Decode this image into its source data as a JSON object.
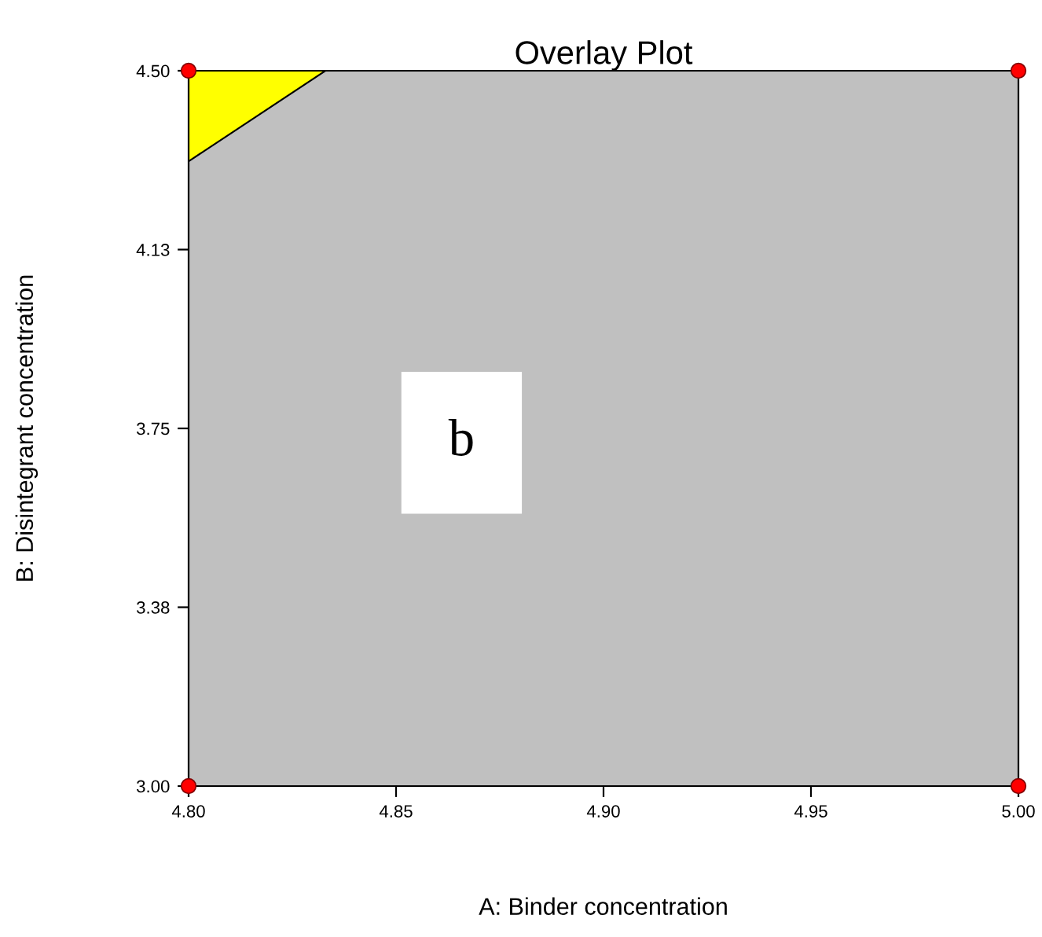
{
  "chart_data": {
    "type": "scatter",
    "title": "Overlay Plot",
    "xlabel": "A: Binder concentration",
    "ylabel": "B: Disintegrant concentration",
    "xlim": [
      4.8,
      5.0
    ],
    "ylim": [
      3.0,
      4.5
    ],
    "xticks": [
      {
        "value": 4.8,
        "label": "4.80"
      },
      {
        "value": 4.85,
        "label": "4.85"
      },
      {
        "value": 4.9,
        "label": "4.90"
      },
      {
        "value": 4.95,
        "label": "4.95"
      },
      {
        "value": 5.0,
        "label": "5.00"
      }
    ],
    "yticks": [
      {
        "value": 3.0,
        "label": "3.00"
      },
      {
        "value": 3.375,
        "label": "3.38"
      },
      {
        "value": 3.75,
        "label": "3.75"
      },
      {
        "value": 4.125,
        "label": "4.13"
      },
      {
        "value": 4.5,
        "label": "4.50"
      }
    ],
    "bands": [
      {
        "axis": "y",
        "from": 3.0,
        "to": 4.5,
        "color": "#c0c0c0"
      }
    ],
    "series": [
      {
        "type": "area",
        "color": "#ffff00",
        "x": [
          4.8,
          4.833
        ],
        "values": [
          4.31,
          4.5
        ]
      },
      {
        "color": "#ff0000",
        "marker": "circle",
        "x": [
          4.8,
          4.8,
          5.0,
          5.0
        ],
        "values": [
          3.0,
          4.5,
          3.0,
          4.5
        ]
      }
    ],
    "annotations": [
      "b"
    ],
    "grid": false,
    "legend": false
  }
}
